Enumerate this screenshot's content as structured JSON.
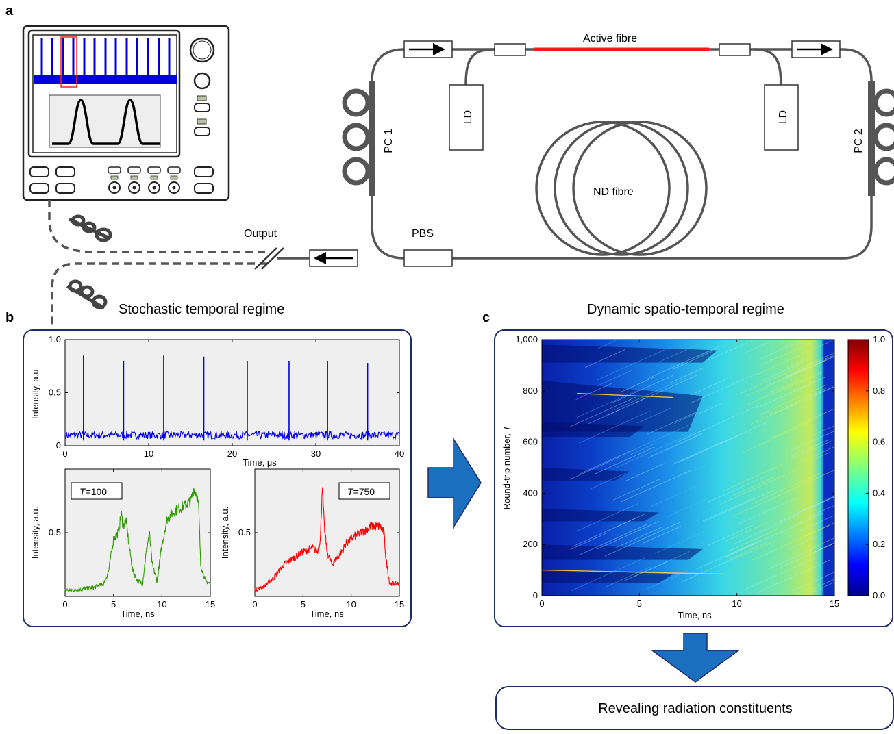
{
  "panels": {
    "a": "a",
    "b": "b",
    "c": "c"
  },
  "setup": {
    "active_fibre": "Active fibre",
    "ld_left": "LD",
    "ld_right": "LD",
    "nd_fibre": "ND fibre",
    "pc1": "PC 1",
    "pc2": "PC 2",
    "output": "Output",
    "pbs": "PBS"
  },
  "titles": {
    "b": "Stochastic temporal regime",
    "c": "Dynamic spatio-temporal regime",
    "bottom_box": "Revealing radiation constituents"
  },
  "colors": {
    "frame": "#1f2a6b",
    "fibre": "#555555",
    "active": "#ff1a1a",
    "blue_trace": "#0000ee",
    "green_trace": "#2f9900",
    "red_trace": "#ff0000",
    "arrow": "#1a6fbf",
    "plot_bg": "#efefef"
  },
  "chart_data": [
    {
      "type": "line",
      "name": "pulse-train",
      "xlabel": "Time, μs",
      "ylabel": "Intensity, a.u.",
      "xlim": [
        0,
        40
      ],
      "ylim": [
        0,
        1.0
      ],
      "xticks": [
        "0",
        "10",
        "20",
        "30",
        "40"
      ],
      "yticks": [
        "0",
        "0.5",
        "1.0"
      ],
      "baseline": 0.1,
      "spikes": [
        {
          "x": 2.2,
          "y": 0.85
        },
        {
          "x": 7.0,
          "y": 0.8
        },
        {
          "x": 11.8,
          "y": 0.85
        },
        {
          "x": 16.6,
          "y": 0.84
        },
        {
          "x": 21.8,
          "y": 0.8
        },
        {
          "x": 26.8,
          "y": 0.8
        },
        {
          "x": 31.4,
          "y": 0.8
        },
        {
          "x": 36.2,
          "y": 0.78
        }
      ]
    },
    {
      "type": "line",
      "name": "T=100",
      "label_prefix": "T",
      "label_value": "=100",
      "xlabel": "Time, ns",
      "ylabel": "Intensity, a.u.",
      "xlim": [
        0,
        15
      ],
      "ylim": [
        0,
        1.0
      ],
      "xticks": [
        "0",
        "5",
        "10",
        "15"
      ],
      "yticks": [
        "0.5"
      ],
      "x": [
        0,
        1,
        2,
        3,
        4,
        4.5,
        5,
        5.5,
        5.8,
        6,
        6.3,
        6.6,
        7,
        7.5,
        8,
        8.3,
        8.7,
        9,
        9.5,
        10,
        10.5,
        11,
        11.5,
        12,
        12.5,
        13,
        13.3,
        13.6,
        13.8,
        14,
        14.5,
        15
      ],
      "y": [
        0.05,
        0.05,
        0.06,
        0.07,
        0.1,
        0.2,
        0.45,
        0.5,
        0.65,
        0.55,
        0.6,
        0.4,
        0.2,
        0.12,
        0.1,
        0.3,
        0.5,
        0.25,
        0.12,
        0.4,
        0.6,
        0.65,
        0.68,
        0.7,
        0.72,
        0.75,
        0.85,
        0.8,
        0.7,
        0.25,
        0.12,
        0.1
      ]
    },
    {
      "type": "line",
      "name": "T=750",
      "label_prefix": "T",
      "label_value": "=750",
      "xlabel": "Time, ns",
      "ylabel": "Intensity, a.u.",
      "xlim": [
        0,
        15
      ],
      "ylim": [
        0,
        1.0
      ],
      "xticks": [
        "0",
        "5",
        "10",
        "15"
      ],
      "yticks": [
        "0.5"
      ],
      "x": [
        0,
        1,
        2,
        3,
        4,
        5,
        6,
        6.5,
        6.8,
        7,
        7.2,
        7.5,
        8,
        8.5,
        9,
        9.5,
        10,
        10.5,
        11,
        11.5,
        12,
        12.5,
        13,
        13.4,
        13.6,
        14,
        14.5,
        15
      ],
      "y": [
        0.05,
        0.08,
        0.15,
        0.25,
        0.3,
        0.35,
        0.38,
        0.35,
        0.45,
        0.88,
        0.55,
        0.35,
        0.25,
        0.3,
        0.35,
        0.42,
        0.45,
        0.48,
        0.5,
        0.52,
        0.55,
        0.55,
        0.55,
        0.5,
        0.3,
        0.1,
        0.1,
        0.1
      ]
    },
    {
      "type": "heatmap",
      "name": "spatio-temporal",
      "xlabel": "Time, ns",
      "ylabel_prefix": "Round-trip number, ",
      "ylabel_var": "T",
      "xlim": [
        0,
        15
      ],
      "ylim": [
        0,
        1000
      ],
      "xticks": [
        "0",
        "5",
        "10",
        "15"
      ],
      "yticks": [
        "0",
        "200",
        "400",
        "600",
        "800",
        "1,000"
      ],
      "colorbar_ticks": [
        "0.0",
        "0.2",
        "0.4",
        "0.6",
        "0.8",
        "1.0"
      ],
      "colorbar_range": [
        0.0,
        1.0
      ]
    }
  ]
}
